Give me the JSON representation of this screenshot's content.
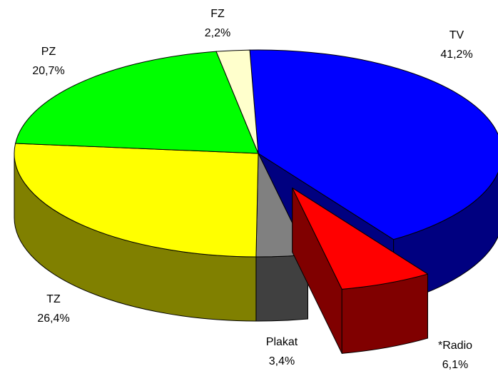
{
  "chart_data": {
    "type": "pie",
    "categories": [
      "TV",
      "*Radio",
      "Plakat",
      "TZ",
      "PZ",
      "FZ"
    ],
    "values": [
      41.2,
      6.1,
      3.4,
      26.4,
      20.7,
      2.2
    ],
    "value_labels": [
      "41,2%",
      "6,1%",
      "3,4%",
      "26,4%",
      "20,7%",
      "2,2%"
    ],
    "colors": [
      "#0000ff",
      "#ff0000",
      "#808080",
      "#ffff00",
      "#00ff00",
      "#ffffcc"
    ],
    "side_colors": [
      "#000080",
      "#800000",
      "#404040",
      "#808000",
      "#008000",
      "#999966"
    ],
    "explode": [
      false,
      true,
      false,
      false,
      false,
      false
    ]
  }
}
